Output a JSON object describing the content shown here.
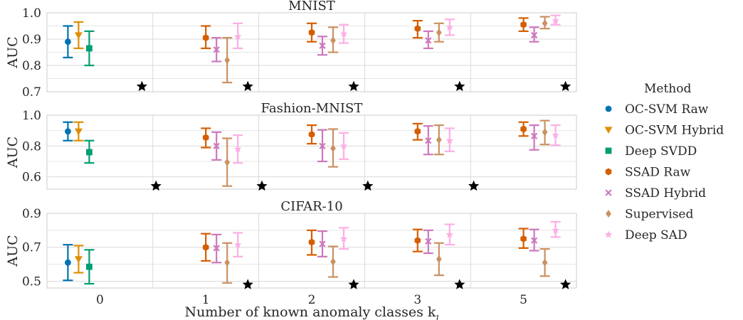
{
  "chart_data": {
    "type": "scatter",
    "subtype": "errorbar",
    "categories": [
      "0",
      "1",
      "2",
      "3",
      "5"
    ],
    "xlabel": "Number of known anomaly classes k",
    "xlabel_subscript": "l",
    "legend": {
      "title": "Method",
      "position": "right"
    },
    "series_meta": [
      {
        "name": "OC-SVM Raw",
        "color": "#0173b2",
        "marker": "circle"
      },
      {
        "name": "OC-SVM Hybrid",
        "color": "#de8f05",
        "marker": "triangle-down"
      },
      {
        "name": "Deep SVDD",
        "color": "#029e73",
        "marker": "square"
      },
      {
        "name": "SSAD Raw",
        "color": "#d55e00",
        "marker": "hexagon"
      },
      {
        "name": "SSAD Hybrid",
        "color": "#cc78bc",
        "marker": "x"
      },
      {
        "name": "Supervised",
        "color": "#ca9161",
        "marker": "diamond"
      },
      {
        "name": "Deep SAD",
        "color": "#fbafe4",
        "marker": "star"
      }
    ],
    "panels": [
      {
        "title": "MNIST",
        "ylabel": "AUC",
        "ylim": [
          0.7,
          1.0
        ],
        "yticks": [
          "0.7",
          "0.8",
          "0.9",
          "1.0"
        ],
        "grid": true,
        "best_marker": [
          0.72,
          0.72,
          0.72,
          0.72,
          0.72
        ],
        "best_marker_series": [
          null,
          null,
          null,
          "Deep SAD",
          "Deep SAD"
        ],
        "series": [
          {
            "name": "OC-SVM Raw",
            "mean": [
              0.89,
              null,
              null,
              null,
              null
            ],
            "low": [
              0.83,
              null,
              null,
              null,
              null
            ],
            "high": [
              0.95,
              null,
              null,
              null,
              null
            ]
          },
          {
            "name": "OC-SVM Hybrid",
            "mean": [
              0.915,
              null,
              null,
              null,
              null
            ],
            "low": [
              0.865,
              null,
              null,
              null,
              null
            ],
            "high": [
              0.965,
              null,
              null,
              null,
              null
            ]
          },
          {
            "name": "Deep SVDD",
            "mean": [
              0.865,
              null,
              null,
              null,
              null
            ],
            "low": [
              0.8,
              null,
              null,
              null,
              null
            ],
            "high": [
              0.93,
              null,
              null,
              null,
              null
            ]
          },
          {
            "name": "SSAD Raw",
            "mean": [
              null,
              0.905,
              0.925,
              0.94,
              0.955
            ],
            "low": [
              null,
              0.865,
              0.89,
              0.905,
              0.93
            ],
            "high": [
              null,
              0.95,
              0.96,
              0.97,
              0.98
            ]
          },
          {
            "name": "SSAD Hybrid",
            "mean": [
              null,
              0.86,
              0.875,
              0.895,
              0.915
            ],
            "low": [
              null,
              0.815,
              0.84,
              0.865,
              0.89
            ],
            "high": [
              null,
              0.905,
              0.91,
              0.93,
              0.945
            ]
          },
          {
            "name": "Supervised",
            "mean": [
              null,
              0.82,
              0.895,
              0.925,
              0.96
            ],
            "low": [
              null,
              0.735,
              0.85,
              0.89,
              0.94
            ],
            "high": [
              null,
              0.905,
              0.945,
              0.96,
              0.985
            ]
          },
          {
            "name": "Deep SAD",
            "mean": [
              null,
              0.91,
              0.92,
              0.945,
              0.97
            ],
            "low": [
              null,
              0.865,
              0.885,
              0.915,
              0.955
            ],
            "high": [
              null,
              0.96,
              0.955,
              0.975,
              0.99
            ]
          }
        ]
      },
      {
        "title": "Fashion-MNIST",
        "ylabel": "AUC",
        "ylim": [
          0.52,
          1.0
        ],
        "yticks": [
          "0.6",
          "0.8",
          "1.0"
        ],
        "grid": true,
        "best_marker": [
          null,
          0.54,
          0.54,
          0.54,
          0.54
        ],
        "series": [
          {
            "name": "OC-SVM Raw",
            "mean": [
              0.895,
              null,
              null,
              null,
              null
            ],
            "low": [
              0.835,
              null,
              null,
              null,
              null
            ],
            "high": [
              0.955,
              null,
              null,
              null,
              null
            ]
          },
          {
            "name": "OC-SVM Hybrid",
            "mean": [
              0.895,
              null,
              null,
              null,
              null
            ],
            "low": [
              0.835,
              null,
              null,
              null,
              null
            ],
            "high": [
              0.955,
              null,
              null,
              null,
              null
            ]
          },
          {
            "name": "Deep SVDD",
            "mean": [
              0.76,
              null,
              null,
              null,
              null
            ],
            "low": [
              0.69,
              null,
              null,
              null,
              null
            ],
            "high": [
              0.835,
              null,
              null,
              null,
              null
            ]
          },
          {
            "name": "SSAD Raw",
            "mean": [
              null,
              0.855,
              0.875,
              0.895,
              0.91
            ],
            "low": [
              null,
              0.79,
              0.815,
              0.84,
              0.865
            ],
            "high": [
              null,
              0.915,
              0.935,
              0.945,
              0.955
            ]
          },
          {
            "name": "SSAD Hybrid",
            "mean": [
              null,
              0.8,
              0.8,
              0.835,
              0.865
            ],
            "low": [
              null,
              0.71,
              0.7,
              0.745,
              0.775
            ],
            "high": [
              null,
              0.89,
              0.905,
              0.93,
              0.935
            ]
          },
          {
            "name": "Supervised",
            "mean": [
              null,
              0.695,
              0.785,
              0.84,
              0.89
            ],
            "low": [
              null,
              0.54,
              0.665,
              0.745,
              0.81
            ],
            "high": [
              null,
              0.85,
              0.91,
              0.935,
              0.965
            ]
          },
          {
            "name": "Deep SAD",
            "mean": [
              null,
              0.78,
              0.8,
              0.835,
              0.87
            ],
            "low": [
              null,
              0.69,
              0.715,
              0.765,
              0.805
            ],
            "high": [
              null,
              0.87,
              0.885,
              0.915,
              0.935
            ]
          }
        ]
      },
      {
        "title": "CIFAR-10",
        "ylabel": "AUC",
        "ylim": [
          0.46,
          0.9
        ],
        "yticks": [
          "0.5",
          "0.7",
          "0.9"
        ],
        "grid": true,
        "best_marker": [
          null,
          0.48,
          0.48,
          0.48,
          0.48
        ],
        "series": [
          {
            "name": "OC-SVM Raw",
            "mean": [
              0.61,
              null,
              null,
              null,
              null
            ],
            "low": [
              0.505,
              null,
              null,
              null,
              null
            ],
            "high": [
              0.715,
              null,
              null,
              null,
              null
            ]
          },
          {
            "name": "OC-SVM Hybrid",
            "mean": [
              0.63,
              null,
              null,
              null,
              null
            ],
            "low": [
              0.55,
              null,
              null,
              null,
              null
            ],
            "high": [
              0.71,
              null,
              null,
              null,
              null
            ]
          },
          {
            "name": "Deep SVDD",
            "mean": [
              0.585,
              null,
              null,
              null,
              null
            ],
            "low": [
              0.485,
              null,
              null,
              null,
              null
            ],
            "high": [
              0.685,
              null,
              null,
              null,
              null
            ]
          },
          {
            "name": "SSAD Raw",
            "mean": [
              null,
              0.7,
              0.73,
              0.74,
              0.75
            ],
            "low": [
              null,
              0.62,
              0.655,
              0.675,
              0.695
            ],
            "high": [
              null,
              0.78,
              0.8,
              0.805,
              0.81
            ]
          },
          {
            "name": "SSAD Hybrid",
            "mean": [
              null,
              0.695,
              0.72,
              0.735,
              0.74
            ],
            "low": [
              null,
              0.61,
              0.645,
              0.665,
              0.68
            ],
            "high": [
              null,
              0.775,
              0.795,
              0.8,
              0.805
            ]
          },
          {
            "name": "Supervised",
            "mean": [
              null,
              0.61,
              0.615,
              0.63,
              0.61
            ],
            "low": [
              null,
              0.49,
              0.525,
              0.535,
              0.53
            ],
            "high": [
              null,
              0.725,
              0.705,
              0.725,
              0.69
            ]
          },
          {
            "name": "Deep SAD",
            "mean": [
              null,
              0.715,
              0.75,
              0.775,
              0.8
            ],
            "low": [
              null,
              0.645,
              0.69,
              0.715,
              0.76
            ],
            "high": [
              null,
              0.785,
              0.815,
              0.835,
              0.85
            ]
          }
        ]
      }
    ]
  }
}
